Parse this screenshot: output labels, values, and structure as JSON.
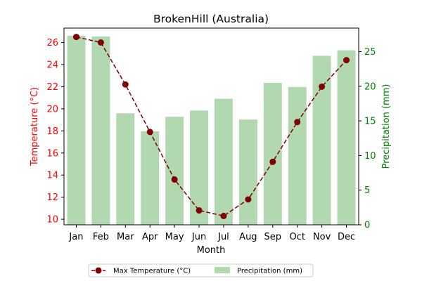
{
  "chart_data": {
    "type": "bar",
    "title": "BrokenHill (Australia)",
    "xlabel": "Month",
    "ylabel_left": "Temperature (°C)",
    "ylabel_right": "Precipitation (mm)",
    "categories": [
      "Jan",
      "Feb",
      "Mar",
      "Apr",
      "May",
      "Jun",
      "Jul",
      "Aug",
      "Sep",
      "Oct",
      "Nov",
      "Dec"
    ],
    "series": [
      {
        "name": "Max Temperature (°C)",
        "type": "line",
        "axis": "left",
        "values": [
          26.5,
          26.0,
          22.2,
          17.9,
          13.6,
          10.8,
          10.3,
          11.8,
          15.2,
          18.8,
          22.0,
          24.4
        ],
        "color": "#7f0000",
        "line_style": "dashed",
        "marker": "circle"
      },
      {
        "name": "Precipitation (mm)",
        "type": "bar",
        "axis": "right",
        "values": [
          27.3,
          27.2,
          16.1,
          13.5,
          15.6,
          16.5,
          18.2,
          15.2,
          20.5,
          19.9,
          24.4,
          25.2
        ],
        "color": "#b2d8b2"
      }
    ],
    "ylim_left": [
      9.5,
      27.3
    ],
    "yticks_left": [
      10,
      12,
      14,
      16,
      18,
      20,
      22,
      24,
      26
    ],
    "ylim_right": [
      0,
      28.4
    ],
    "yticks_right": [
      0,
      5,
      10,
      15,
      20,
      25
    ],
    "left_axis_color": "#ff0000",
    "right_axis_color": "#008000",
    "grid": false,
    "legend_position": "bottom-center"
  }
}
